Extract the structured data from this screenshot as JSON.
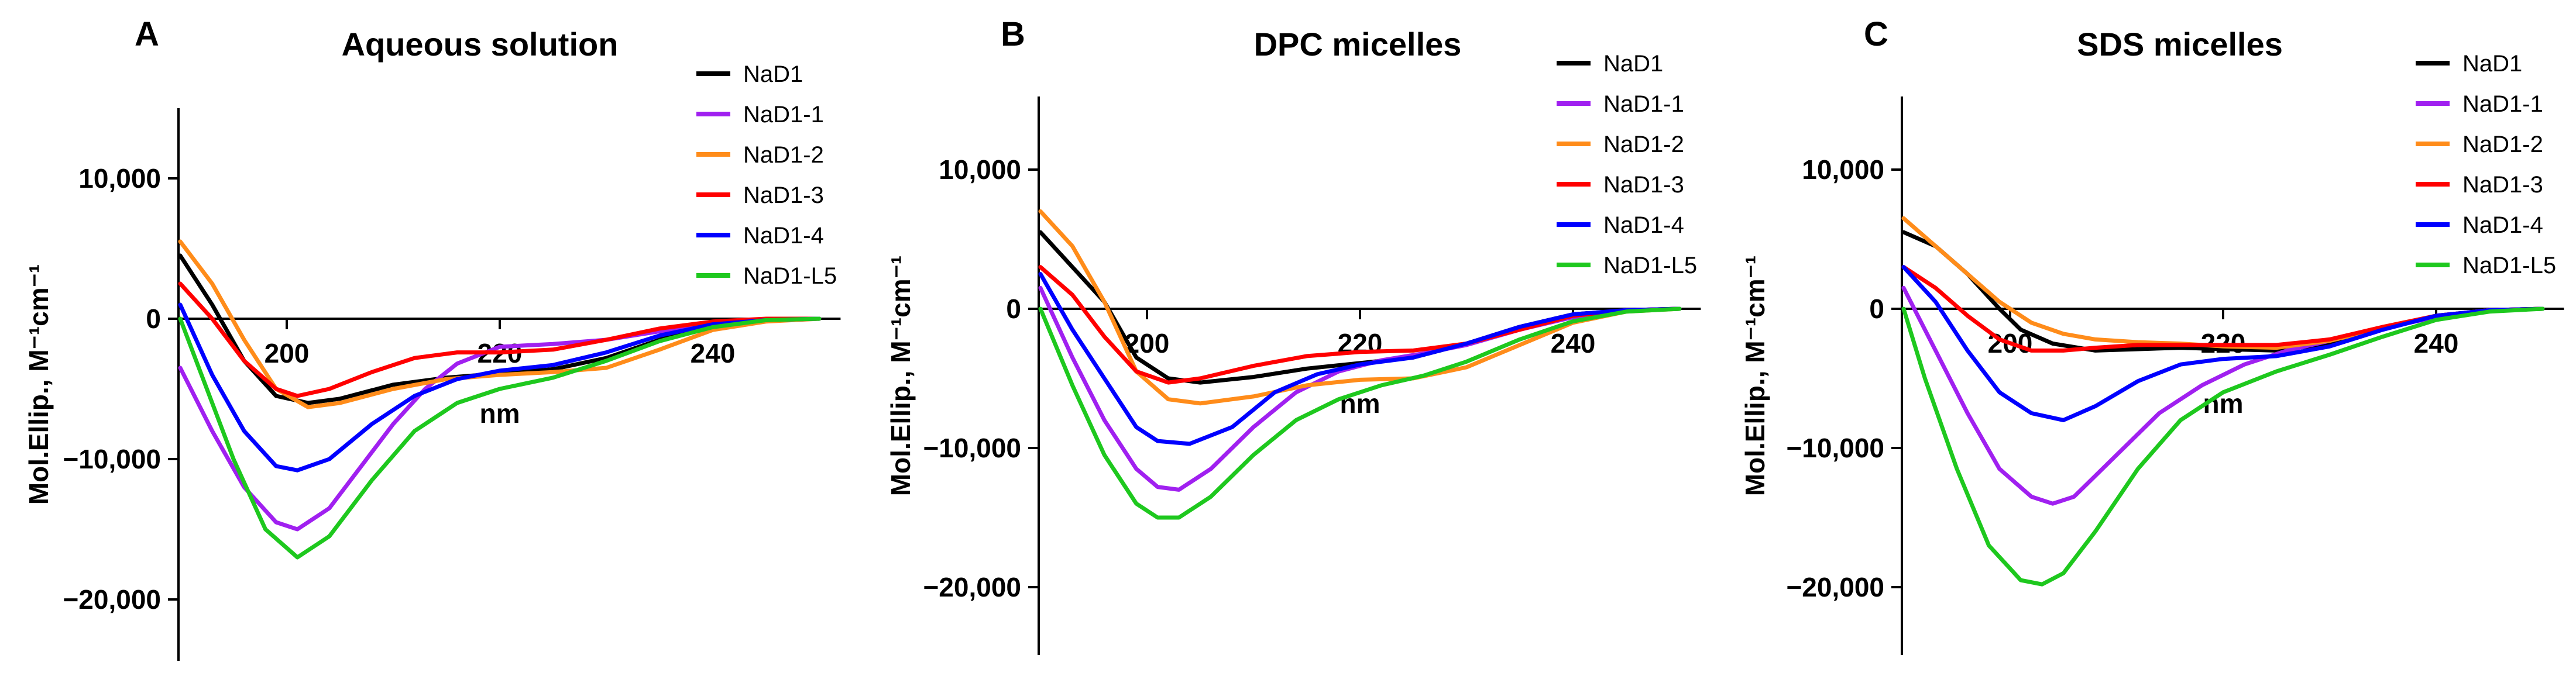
{
  "figure": {
    "series_colors": {
      "NaD1": "#000000",
      "NaD1-1": "#a020f0",
      "NaD1-2": "#ff8c1a",
      "NaD1-3": "#ff0000",
      "NaD1-4": "#0000ff",
      "NaD1-L5": "#1ec81e"
    }
  },
  "chart_data": [
    {
      "panel_label": "A",
      "type": "line",
      "title": "Aqueous solution",
      "xlabel": "nm",
      "ylabel": "Mol.Ellip., M⁻¹cm⁻¹",
      "xlim": [
        190,
        252
      ],
      "ylim": [
        -25000,
        15000
      ],
      "x_ticks": [
        200,
        220,
        240
      ],
      "x_tick_labels": [
        "200",
        "220",
        "240"
      ],
      "y_ticks": [
        10000,
        0,
        -10000,
        -20000
      ],
      "y_tick_labels": [
        "10,000",
        "0",
        "−10,000",
        "−20,000"
      ],
      "grid": false,
      "legend": "top-right",
      "series": [
        {
          "name": "NaD1",
          "x": [
            190,
            193,
            196,
            199,
            202,
            205,
            210,
            215,
            220,
            225,
            230,
            235,
            240,
            245,
            250
          ],
          "y": [
            4500,
            1000,
            -3000,
            -5500,
            -6000,
            -5700,
            -4700,
            -4200,
            -3900,
            -3600,
            -2800,
            -1500,
            -500,
            -100,
            0
          ]
        },
        {
          "name": "NaD1-1",
          "x": [
            190,
            193,
            196,
            199,
            201,
            204,
            207,
            210,
            213,
            216,
            220,
            225,
            230,
            235,
            240,
            245,
            250
          ],
          "y": [
            -3500,
            -8000,
            -12000,
            -14500,
            -15000,
            -13500,
            -10500,
            -7500,
            -5000,
            -3200,
            -2000,
            -1800,
            -1500,
            -900,
            -400,
            -100,
            0
          ]
        },
        {
          "name": "NaD1-2",
          "x": [
            190,
            193,
            196,
            199,
            202,
            205,
            210,
            215,
            220,
            225,
            230,
            235,
            240,
            245,
            250
          ],
          "y": [
            5500,
            2500,
            -1500,
            -5000,
            -6300,
            -6000,
            -5000,
            -4300,
            -4000,
            -3800,
            -3500,
            -2200,
            -800,
            -200,
            0
          ]
        },
        {
          "name": "NaD1-3",
          "x": [
            190,
            193,
            196,
            199,
            201,
            204,
            208,
            212,
            216,
            220,
            225,
            230,
            235,
            240,
            245,
            250
          ],
          "y": [
            2500,
            0,
            -3000,
            -5000,
            -5500,
            -5000,
            -3800,
            -2800,
            -2400,
            -2400,
            -2200,
            -1500,
            -700,
            -200,
            0,
            0
          ]
        },
        {
          "name": "NaD1-4",
          "x": [
            190,
            193,
            196,
            199,
            201,
            204,
            208,
            212,
            216,
            220,
            225,
            230,
            235,
            240,
            245,
            250
          ],
          "y": [
            1000,
            -4000,
            -8000,
            -10500,
            -10800,
            -10000,
            -7500,
            -5500,
            -4300,
            -3700,
            -3300,
            -2400,
            -1200,
            -400,
            -100,
            0
          ]
        },
        {
          "name": "NaD1-L5",
          "x": [
            190,
            192,
            195,
            198,
            201,
            204,
            208,
            212,
            216,
            220,
            225,
            230,
            235,
            240,
            245,
            250
          ],
          "y": [
            0,
            -4000,
            -10000,
            -15000,
            -17000,
            -15500,
            -11500,
            -8000,
            -6000,
            -5000,
            -4200,
            -3000,
            -1600,
            -600,
            -100,
            0
          ]
        }
      ]
    },
    {
      "panel_label": "B",
      "type": "line",
      "title": "DPC micelles",
      "xlabel": "nm",
      "ylabel": "Mol.Ellip., M⁻¹cm⁻¹",
      "xlim": [
        190,
        252
      ],
      "ylim": [
        -25000,
        15000
      ],
      "x_ticks": [
        200,
        220,
        240
      ],
      "x_tick_labels": [
        "200",
        "220",
        "240"
      ],
      "y_ticks": [
        10000,
        0,
        -10000,
        -20000
      ],
      "y_tick_labels": [
        "10,000",
        "0",
        "−10,000",
        "−20,000"
      ],
      "grid": false,
      "legend": "top-right",
      "series": [
        {
          "name": "NaD1",
          "x": [
            190,
            193,
            196,
            199,
            202,
            205,
            210,
            215,
            220,
            225,
            230,
            235,
            240,
            245,
            250
          ],
          "y": [
            5500,
            3000,
            500,
            -3500,
            -5000,
            -5300,
            -4900,
            -4300,
            -3900,
            -3500,
            -2500,
            -1300,
            -400,
            -100,
            0
          ]
        },
        {
          "name": "NaD1-1",
          "x": [
            190,
            193,
            196,
            199,
            201,
            203,
            206,
            210,
            214,
            218,
            222,
            226,
            230,
            235,
            240,
            245,
            250
          ],
          "y": [
            1500,
            -3500,
            -8000,
            -11500,
            -12800,
            -13000,
            -11500,
            -8500,
            -6000,
            -4500,
            -3700,
            -3200,
            -2600,
            -1500,
            -600,
            -100,
            0
          ]
        },
        {
          "name": "NaD1-2",
          "x": [
            190,
            193,
            196,
            199,
            202,
            205,
            210,
            215,
            220,
            225,
            230,
            235,
            240,
            245,
            250
          ],
          "y": [
            7000,
            4500,
            500,
            -4500,
            -6500,
            -6800,
            -6300,
            -5500,
            -5100,
            -5000,
            -4200,
            -2600,
            -1000,
            -200,
            0
          ]
        },
        {
          "name": "NaD1-3",
          "x": [
            190,
            193,
            196,
            199,
            202,
            205,
            210,
            215,
            220,
            225,
            230,
            235,
            240,
            245,
            250
          ],
          "y": [
            3000,
            1000,
            -2000,
            -4500,
            -5300,
            -5000,
            -4100,
            -3400,
            -3100,
            -3000,
            -2500,
            -1500,
            -500,
            -100,
            0
          ]
        },
        {
          "name": "NaD1-4",
          "x": [
            190,
            193,
            196,
            199,
            201,
            204,
            208,
            212,
            216,
            220,
            225,
            230,
            235,
            240,
            245,
            250
          ],
          "y": [
            2500,
            -1500,
            -5000,
            -8500,
            -9500,
            -9700,
            -8500,
            -6000,
            -4700,
            -4000,
            -3500,
            -2500,
            -1300,
            -400,
            -100,
            0
          ]
        },
        {
          "name": "NaD1-L5",
          "x": [
            190,
            193,
            196,
            199,
            201,
            203,
            206,
            210,
            214,
            218,
            222,
            226,
            230,
            235,
            240,
            245,
            250
          ],
          "y": [
            0,
            -5500,
            -10500,
            -14000,
            -15000,
            -15000,
            -13500,
            -10500,
            -8000,
            -6500,
            -5500,
            -4800,
            -3800,
            -2200,
            -900,
            -200,
            0
          ]
        }
      ]
    },
    {
      "panel_label": "C",
      "type": "line",
      "title": "SDS micelles",
      "xlabel": "nm",
      "ylabel": "Mol.Ellip., M⁻¹cm⁻¹",
      "xlim": [
        190,
        252
      ],
      "ylim": [
        -25000,
        15000
      ],
      "x_ticks": [
        200,
        220,
        240
      ],
      "x_tick_labels": [
        "200",
        "220",
        "240"
      ],
      "y_ticks": [
        10000,
        0,
        -10000,
        -20000
      ],
      "y_tick_labels": [
        "10,000",
        "0",
        "−10,000",
        "−20,000"
      ],
      "grid": false,
      "legend": "top-right",
      "series": [
        {
          "name": "NaD1",
          "x": [
            190,
            193,
            196,
            199,
            201,
            204,
            208,
            212,
            216,
            220,
            225,
            230,
            235,
            240,
            245,
            250
          ],
          "y": [
            5500,
            4500,
            2500,
            0,
            -1500,
            -2500,
            -3000,
            -2900,
            -2800,
            -2900,
            -3000,
            -2500,
            -1400,
            -500,
            -100,
            0
          ]
        },
        {
          "name": "NaD1-1",
          "x": [
            190,
            193,
            196,
            199,
            202,
            204,
            206,
            210,
            214,
            218,
            222,
            226,
            230,
            235,
            240,
            245,
            250
          ],
          "y": [
            1500,
            -3000,
            -7500,
            -11500,
            -13500,
            -14000,
            -13500,
            -10500,
            -7500,
            -5500,
            -4000,
            -3000,
            -2300,
            -1400,
            -600,
            -100,
            0
          ]
        },
        {
          "name": "NaD1-2",
          "x": [
            190,
            193,
            196,
            199,
            202,
            205,
            208,
            212,
            216,
            220,
            225,
            230,
            235,
            240,
            245,
            250
          ],
          "y": [
            6500,
            4500,
            2500,
            500,
            -1000,
            -1800,
            -2200,
            -2400,
            -2500,
            -2700,
            -2800,
            -2300,
            -1400,
            -500,
            -100,
            0
          ]
        },
        {
          "name": "NaD1-3",
          "x": [
            190,
            193,
            196,
            199,
            202,
            205,
            208,
            212,
            216,
            220,
            225,
            230,
            235,
            240,
            245,
            250
          ],
          "y": [
            3000,
            1500,
            -500,
            -2200,
            -3000,
            -3000,
            -2800,
            -2600,
            -2600,
            -2600,
            -2600,
            -2200,
            -1300,
            -500,
            -100,
            0
          ]
        },
        {
          "name": "NaD1-4",
          "x": [
            190,
            193,
            196,
            199,
            202,
            205,
            208,
            212,
            216,
            220,
            225,
            230,
            235,
            240,
            245,
            250
          ],
          "y": [
            3000,
            500,
            -3000,
            -6000,
            -7500,
            -8000,
            -7000,
            -5200,
            -4000,
            -3600,
            -3400,
            -2700,
            -1500,
            -500,
            -100,
            0
          ]
        },
        {
          "name": "NaD1-L5",
          "x": [
            190,
            192,
            195,
            198,
            201,
            203,
            205,
            208,
            212,
            216,
            220,
            225,
            230,
            235,
            240,
            245,
            250
          ],
          "y": [
            0,
            -5000,
            -11500,
            -17000,
            -19500,
            -19800,
            -19000,
            -16000,
            -11500,
            -8000,
            -6000,
            -4500,
            -3300,
            -2000,
            -800,
            -200,
            0
          ]
        }
      ]
    }
  ]
}
